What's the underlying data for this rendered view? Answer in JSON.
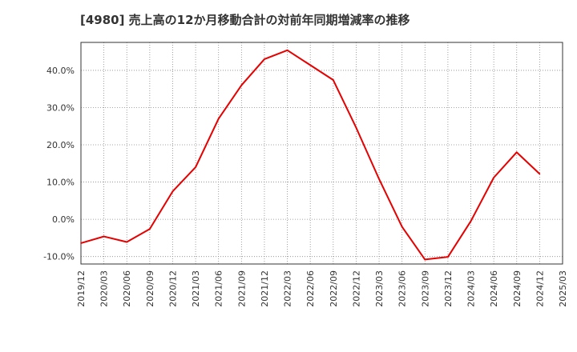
{
  "chart_data": {
    "type": "line",
    "title": "[4980]  売上高の12か月移動合計の対前年同期増減率の推移",
    "xlabel": "",
    "ylabel": "",
    "x": [
      "2019/12",
      "2020/03",
      "2020/06",
      "2020/09",
      "2020/12",
      "2021/03",
      "2021/06",
      "2021/09",
      "2021/12",
      "2022/03",
      "2022/06",
      "2022/09",
      "2022/12",
      "2023/03",
      "2023/06",
      "2023/09",
      "2023/12",
      "2024/03",
      "2024/06",
      "2024/09",
      "2024/12"
    ],
    "x_ticks": [
      "2019/12",
      "2020/03",
      "2020/06",
      "2020/09",
      "2020/12",
      "2021/03",
      "2021/06",
      "2021/09",
      "2021/12",
      "2022/03",
      "2022/06",
      "2022/09",
      "2022/12",
      "2023/03",
      "2023/06",
      "2023/09",
      "2023/12",
      "2024/03",
      "2024/06",
      "2024/09",
      "2024/12",
      "2025/03"
    ],
    "series": [
      {
        "values": [
          -6.4,
          -4.6,
          -6.1,
          -2.6,
          7.5,
          14.0,
          27.0,
          36.0,
          43.0,
          45.4,
          41.4,
          37.4,
          24.6,
          10.8,
          -2.0,
          -10.8,
          -10.1,
          -0.5,
          11.2,
          18.0,
          12.2
        ]
      }
    ],
    "y_ticks": [
      "-10.0%",
      "0.0%",
      "10.0%",
      "20.0%",
      "30.0%",
      "40.0%"
    ],
    "y_tick_values": [
      -10,
      0,
      10,
      20,
      30,
      40
    ],
    "ylim": [
      -12,
      47.5
    ],
    "grid": true,
    "legend": "none",
    "line_color": "#e60000"
  }
}
